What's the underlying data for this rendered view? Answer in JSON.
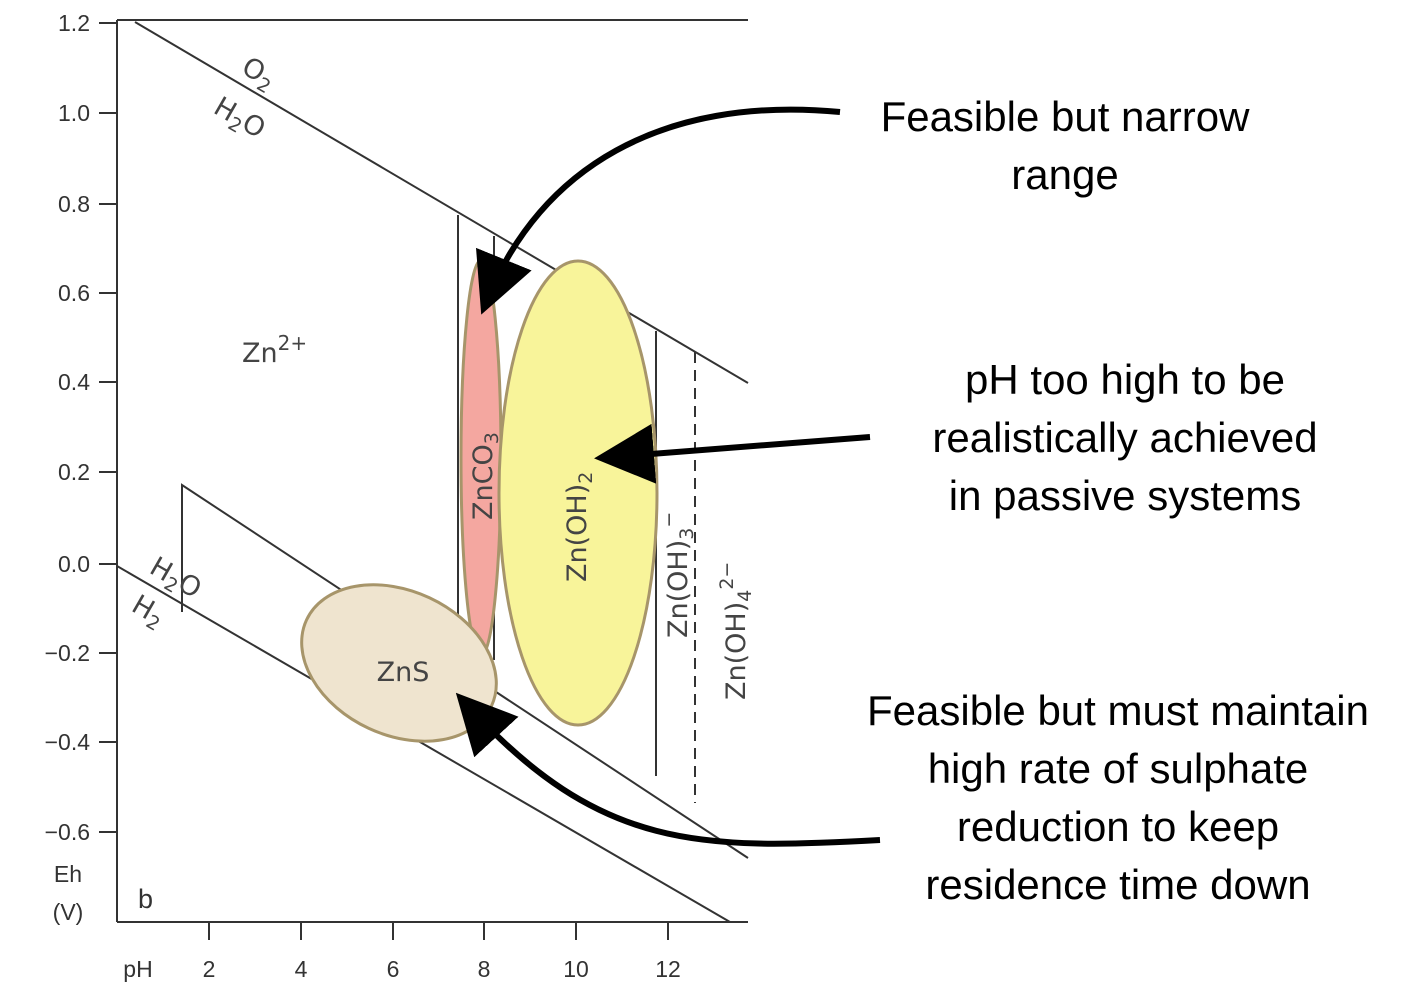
{
  "axes": {
    "y_ticks": [
      "1.2",
      "1.0",
      "0.8",
      "0.6",
      "0.4",
      "0.2",
      "0.0",
      "−0.2",
      "−0.4",
      "−0.6"
    ],
    "y_label_line1": "Eh",
    "y_label_line2": "(V)",
    "x_label": "pH",
    "x_ticks": [
      "2",
      "4",
      "6",
      "8",
      "10",
      "12"
    ],
    "panel_label": "b"
  },
  "boundaries": {
    "upper_oxidized": "O",
    "upper_oxidized_sub": "2",
    "upper_reduced": "H",
    "upper_reduced_sub": "2",
    "upper_reduced_end": "O",
    "lower_oxidized": "H",
    "lower_oxidized_sub": "2",
    "lower_oxidized_end": "O",
    "lower_reduced": "H",
    "lower_reduced_sub": "2"
  },
  "regions": {
    "zn2_base": "Zn",
    "zn2_charge": "2+",
    "znco3_base": "ZnCO",
    "znco3_sub": "3",
    "znoh2_base": "Zn(OH)",
    "znoh2_sub": "2",
    "znoh3_base": "Zn(OH)",
    "znoh3_sub": "3",
    "znoh3_charge": "−",
    "znoh4_base": "Zn(OH)",
    "znoh4_sub": "4",
    "znoh4_charge": "2−",
    "zns": "ZnS"
  },
  "colors": {
    "znco3_fill": "#f4a7a0",
    "znoh2_fill": "#f8f49a",
    "zns_fill": "#efe4cf",
    "ellipse_stroke": "#a7956a"
  },
  "annotations": {
    "znco3": "Feasible but narrow\nrange",
    "znoh2": "pH too high to be\nrealistically achieved\nin passive systems",
    "zns": "Feasible but must maintain\nhigh rate of sulphate\nreduction to keep\nresidence time down"
  }
}
